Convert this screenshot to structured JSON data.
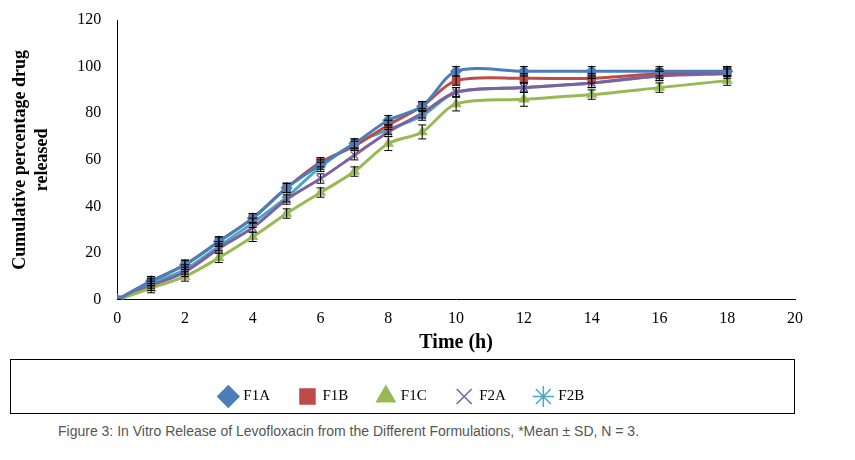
{
  "chart_data": {
    "type": "line",
    "x_label": "Time (h)",
    "y_label": [
      "Cumulative percentage drug",
      "released"
    ],
    "caption": "Figure 3: In Vitro Release of Levofloxacin from the Different Formulations, *Mean ± SD, N = 3.",
    "x": [
      0,
      1,
      2,
      3,
      4,
      5,
      6,
      7,
      8,
      9,
      10,
      12,
      14,
      16,
      18
    ],
    "series": [
      {
        "name": "F1A",
        "color": "#4a7ebb",
        "marker": "diamond",
        "values": [
          0,
          8,
          15,
          25,
          35,
          48,
          58,
          67,
          77,
          83,
          98,
          98,
          98,
          98,
          98
        ],
        "errors": [
          0,
          2,
          2,
          2,
          2,
          2,
          2,
          2,
          2,
          2,
          2,
          2,
          2,
          2,
          2
        ]
      },
      {
        "name": "F1B",
        "color": "#be4b48",
        "marker": "square",
        "values": [
          0,
          8,
          15,
          25,
          35,
          48,
          59,
          66,
          75,
          83,
          94,
          95,
          95,
          97,
          98
        ],
        "errors": [
          0,
          2,
          2,
          2,
          2,
          2,
          2,
          2,
          2,
          2,
          2,
          2,
          2,
          2,
          2
        ]
      },
      {
        "name": "F1C",
        "color": "#98b954",
        "marker": "triangle",
        "values": [
          0,
          5,
          10,
          18,
          27,
          37,
          46,
          55,
          67,
          72,
          84,
          86,
          88,
          91,
          94
        ],
        "errors": [
          0,
          2,
          2,
          2,
          2,
          2,
          2,
          2,
          3,
          3,
          3,
          3,
          2,
          2,
          2
        ]
      },
      {
        "name": "F2A",
        "color": "#7d60a0",
        "marker": "cross",
        "values": [
          0,
          6,
          12,
          22,
          31,
          43,
          52,
          62,
          72,
          80,
          89,
          91,
          93,
          96,
          97
        ],
        "errors": [
          0,
          2,
          2,
          2,
          2,
          2,
          2,
          2,
          2,
          2,
          2,
          2,
          2,
          2,
          2
        ]
      },
      {
        "name": "F2B",
        "color": "#46aac5",
        "marker": "star",
        "values": [
          0,
          7,
          13,
          23,
          33,
          44,
          57,
          67,
          73,
          79,
          89,
          91,
          93,
          96,
          98
        ],
        "errors": [
          0,
          2,
          2,
          2,
          2,
          2,
          2,
          2,
          2,
          2,
          2,
          2,
          2,
          2,
          2
        ]
      }
    ],
    "xlim": [
      0,
      20
    ],
    "xticks": [
      0,
      2,
      4,
      6,
      8,
      10,
      12,
      14,
      16,
      18,
      20
    ],
    "ylim": [
      0,
      120
    ],
    "yticks": [
      0,
      20,
      40,
      60,
      80,
      100,
      120
    ],
    "grid": false,
    "legend": "bottom"
  }
}
